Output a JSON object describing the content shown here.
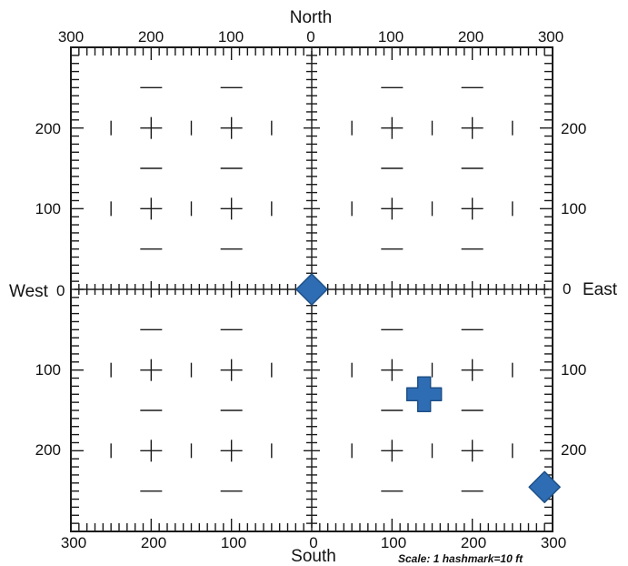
{
  "directions": {
    "north": "North",
    "south": "South",
    "west": "West",
    "east": "East"
  },
  "top_ticks": [
    "300",
    "200",
    "100",
    "0",
    "100",
    "200",
    "300"
  ],
  "bottom_ticks": [
    "300",
    "200",
    "100",
    "0",
    "100",
    "200",
    "300"
  ],
  "left_ticks": [
    "200",
    "100",
    "0",
    "100",
    "200"
  ],
  "right_ticks": [
    "200",
    "100",
    "0",
    "100",
    "200"
  ],
  "scale_note": "Scale:  1 hashmark=10 ft",
  "units_per_hashmark": 10,
  "extent": 300,
  "markers": [
    {
      "shape": "diamond",
      "x": 0,
      "y": 0,
      "color": "#2e6db4"
    },
    {
      "shape": "cross",
      "x": 140,
      "y": -130,
      "color": "#2e6db4"
    },
    {
      "shape": "diamond",
      "x": 290,
      "y": -245,
      "color": "#2e6db4"
    }
  ],
  "colors": {
    "marker": "#2e6db4",
    "marker_edge": "#1d4f86",
    "lines": "#1a1a1a"
  }
}
